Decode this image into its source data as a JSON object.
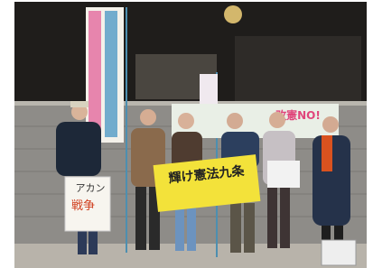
{
  "signs": {
    "yellow_sign": "輝け憲法九条",
    "left_sign": [
      "アカン",
      "戦争"
    ],
    "banner": "改憲NO!"
  }
}
